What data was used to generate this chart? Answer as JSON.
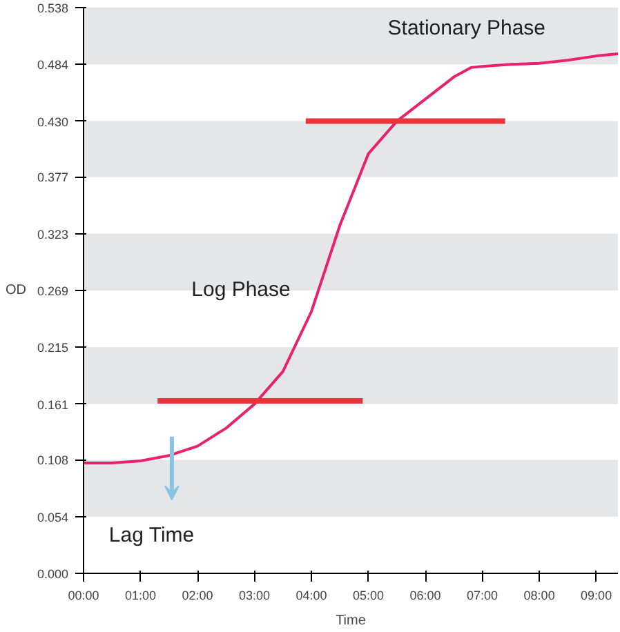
{
  "chart_data": {
    "type": "line",
    "xlabel": "Time",
    "ylabel": "OD",
    "xlim": [
      0,
      9.38
    ],
    "ylim": [
      0,
      0.538
    ],
    "xticks": [
      {
        "value": 0,
        "label": "00:00"
      },
      {
        "value": 1,
        "label": "01:00"
      },
      {
        "value": 2,
        "label": "02:00"
      },
      {
        "value": 3,
        "label": "03:00"
      },
      {
        "value": 4,
        "label": "04:00"
      },
      {
        "value": 5,
        "label": "05:00"
      },
      {
        "value": 6,
        "label": "06:00"
      },
      {
        "value": 7,
        "label": "07:00"
      },
      {
        "value": 8,
        "label": "08:00"
      },
      {
        "value": 9,
        "label": "09:00"
      }
    ],
    "yticks": [
      {
        "value": 0,
        "label": "0.000"
      },
      0.054,
      0.108,
      0.161,
      0.215,
      0.269,
      0.323,
      0.377,
      {
        "value": 0.43,
        "label": "0.430"
      },
      0.484,
      0.538
    ],
    "grid": false,
    "marker": "none",
    "line_style": "solid",
    "bands": [
      {
        "axis": "y",
        "from": 0.054,
        "to": 0.108,
        "color": "#e5e6e8"
      },
      {
        "axis": "y",
        "from": 0.161,
        "to": 0.215,
        "color": "#e5e6e8"
      },
      {
        "axis": "y",
        "from": 0.269,
        "to": 0.323,
        "color": "#e5e6e8"
      },
      {
        "axis": "y",
        "from": 0.377,
        "to": 0.43,
        "color": "#e5e6e8"
      },
      {
        "axis": "y",
        "from": 0.484,
        "to": 0.538,
        "color": "#e5e6e8"
      }
    ],
    "series": [
      {
        "color": "#e8226e",
        "x": [
          0,
          0.5,
          1,
          1.5,
          2,
          2.5,
          3,
          3.5,
          4,
          4.5,
          5,
          5.5,
          6,
          6.5,
          6.8,
          7,
          7.5,
          8,
          8.5,
          9,
          9.38
        ],
        "values": [
          0.105,
          0.105,
          0.107,
          0.112,
          0.121,
          0.138,
          0.161,
          0.192,
          0.249,
          0.331,
          0.399,
          0.43,
          0.451,
          0.472,
          0.481,
          0.482,
          0.484,
          0.485,
          0.488,
          0.492,
          0.494
        ]
      },
      {
        "color": "#e8363a",
        "x": [
          1.3,
          4.9
        ],
        "values": [
          0.164,
          0.164
        ]
      },
      {
        "color": "#e8363a",
        "x": [
          3.9,
          7.4
        ],
        "values": [
          0.43,
          0.43
        ]
      }
    ],
    "annotations": [
      "Stationary Phase",
      "Log Phase",
      "Lag Time"
    ]
  }
}
